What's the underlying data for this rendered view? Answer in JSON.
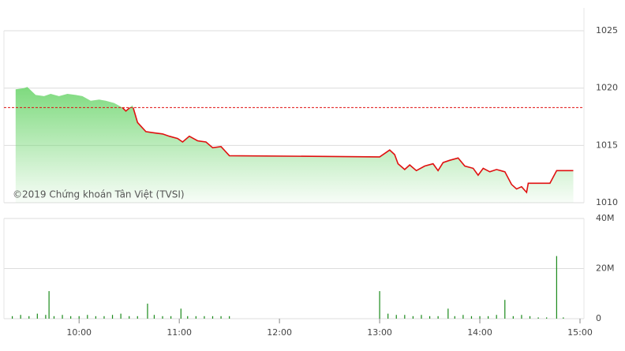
{
  "chart_data": [
    {
      "type": "line",
      "annotation": "©2019 Chứng khoán Tân Việt (TVSI)",
      "x": [
        562,
        567,
        569,
        574,
        579,
        583,
        588,
        593,
        598,
        602,
        607,
        612,
        616,
        621,
        626,
        628,
        632,
        635,
        640,
        645,
        650,
        654,
        659,
        662,
        666,
        671,
        676,
        680,
        685,
        690,
        780,
        786,
        789,
        791,
        795,
        798,
        802,
        807,
        812,
        815,
        818,
        822,
        827,
        831,
        836,
        839,
        842,
        846,
        850,
        855,
        859,
        862,
        865,
        868,
        869,
        882,
        886,
        896
      ],
      "series": [
        {
          "color": "#e01010",
          "fill": "#6fd66f",
          "values": [
            1019.9,
            1020.0,
            1020.1,
            1019.4,
            1019.3,
            1019.5,
            1019.3,
            1019.5,
            1019.4,
            1019.3,
            1018.9,
            1019.0,
            1018.9,
            1018.7,
            1018.3,
            1018.0,
            1018.5,
            1017.0,
            1016.2,
            1016.1,
            1016.0,
            1015.8,
            1015.6,
            1015.3,
            1015.8,
            1015.4,
            1015.3,
            1014.8,
            1014.9,
            1014.1,
            1014.0,
            1014.6,
            1014.2,
            1013.4,
            1012.9,
            1013.3,
            1012.8,
            1013.2,
            1013.4,
            1012.8,
            1013.5,
            1013.7,
            1013.9,
            1013.2,
            1013.0,
            1012.4,
            1013.0,
            1012.7,
            1012.9,
            1012.7,
            1011.6,
            1011.2,
            1011.4,
            1010.9,
            1011.7,
            1011.7,
            1012.8,
            1012.8
          ]
        }
      ],
      "ref_value": 1018.3,
      "ref_color": "#e01010",
      "xlim": [
        555,
        900
      ],
      "ylim": [
        1010,
        1027
      ],
      "yticks": [
        1010,
        1015,
        1020,
        1025
      ],
      "grid": true
    },
    {
      "type": "bar",
      "color": "#1a8a1a",
      "x": [
        560,
        565,
        570,
        575,
        580,
        582,
        585,
        590,
        595,
        600,
        605,
        610,
        615,
        620,
        625,
        630,
        635,
        641,
        645,
        650,
        655,
        661,
        665,
        670,
        675,
        680,
        685,
        690,
        780,
        785,
        790,
        795,
        800,
        805,
        810,
        815,
        821,
        825,
        830,
        835,
        840,
        845,
        850,
        855,
        860,
        865,
        870,
        875,
        880,
        886,
        890
      ],
      "values": [
        1000000,
        1500000,
        1000000,
        2000000,
        1500000,
        11000000,
        1000000,
        1500000,
        1000000,
        1000000,
        1500000,
        1000000,
        1000000,
        1500000,
        2000000,
        1000000,
        1000000,
        6000000,
        1500000,
        1000000,
        1000000,
        4000000,
        1000000,
        1000000,
        1000000,
        1000000,
        1000000,
        1000000,
        11000000,
        2000000,
        1500000,
        1500000,
        1000000,
        1500000,
        1000000,
        1000000,
        4000000,
        1000000,
        1500000,
        1000000,
        1000000,
        1000000,
        1500000,
        7500000,
        1000000,
        1500000,
        1000000,
        500000,
        500000,
        25000000,
        500000
      ],
      "xlim": [
        555,
        900
      ],
      "ylim": [
        0,
        40000000
      ],
      "yticks": [
        0,
        {
          "value": 20000000,
          "label": "20M"
        },
        {
          "value": 40000000,
          "label": "40M"
        }
      ],
      "xticks": [
        {
          "value": 600,
          "label": "10:00"
        },
        {
          "value": 660,
          "label": "11:00"
        },
        {
          "value": 720,
          "label": "12:00"
        },
        {
          "value": 780,
          "label": "13:00"
        },
        {
          "value": 840,
          "label": "14:00"
        },
        {
          "value": 900,
          "label": "15:00"
        }
      ],
      "grid": true
    }
  ]
}
